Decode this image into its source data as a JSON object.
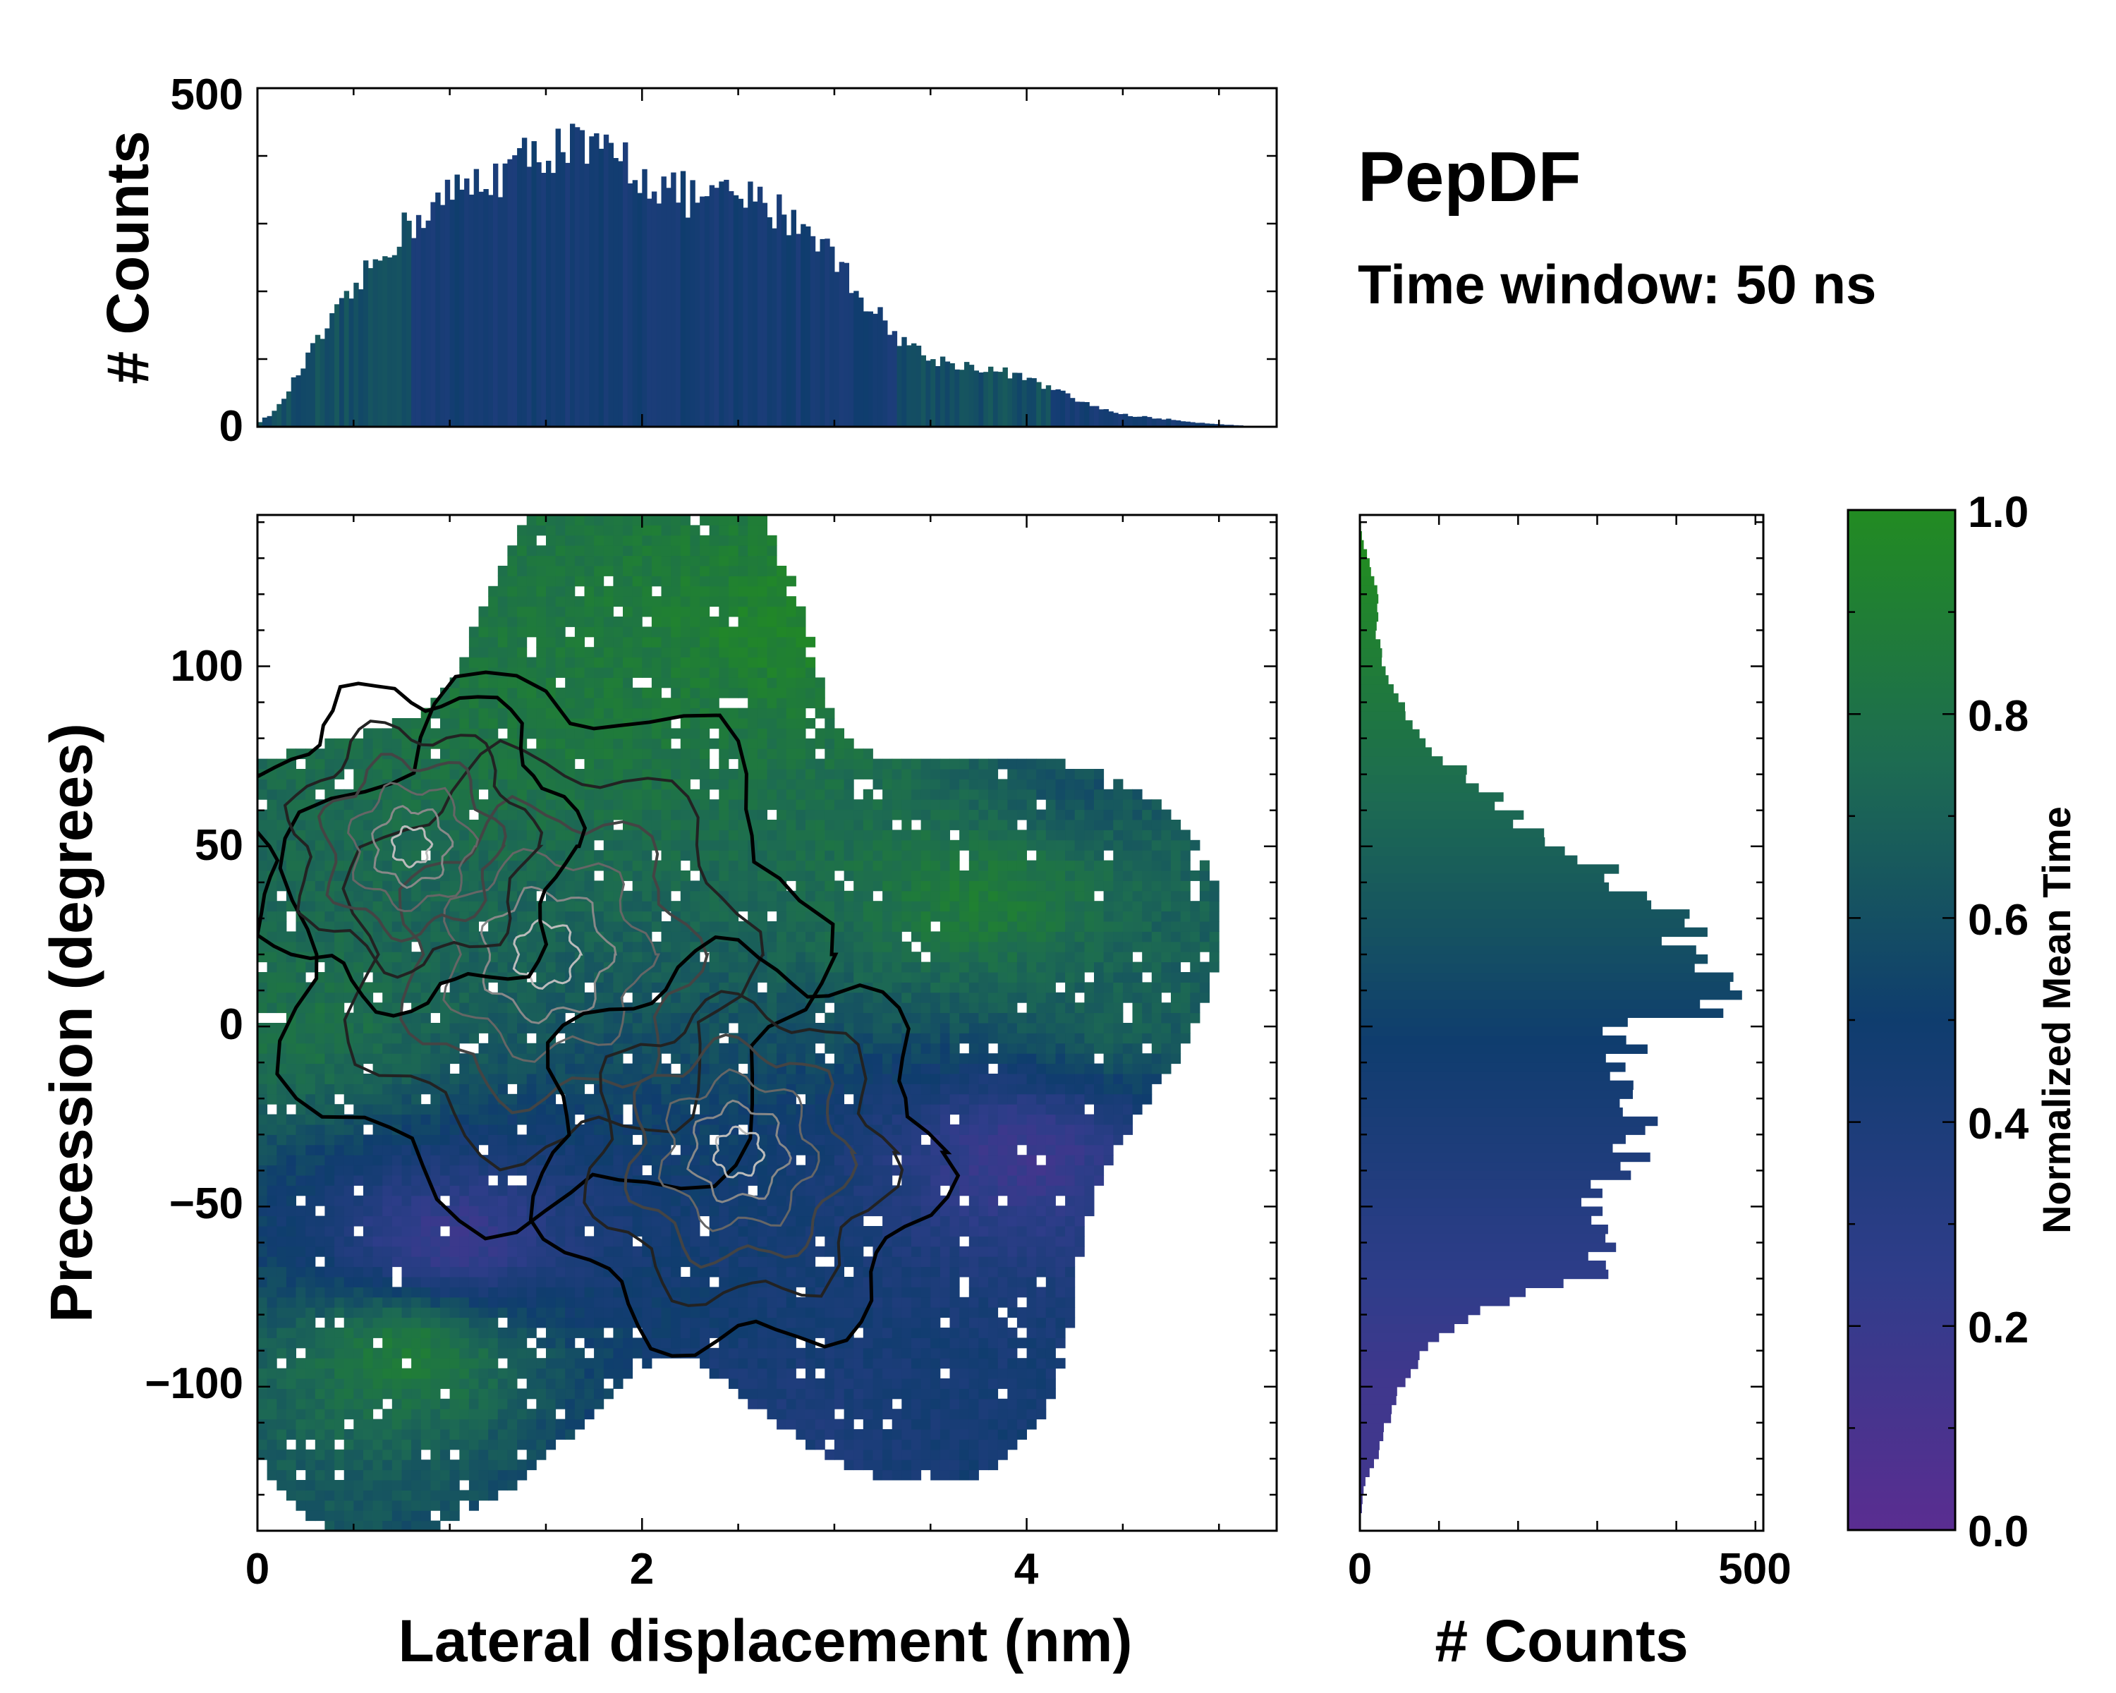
{
  "annotation": {
    "title": "PepDF",
    "subtitle": "Time window: 50 ns"
  },
  "colors": {
    "low": "#5a2d91",
    "mid": "#0f3d6e",
    "high": "#228b22"
  },
  "chart_data": [
    {
      "id": "top_histogram",
      "type": "bar",
      "title": "",
      "xlabel": "",
      "ylabel": "# Counts",
      "xlim": [
        0,
        5.3
      ],
      "ylim": [
        0,
        500
      ],
      "yticks": [
        "0",
        "500"
      ],
      "bin_width": 0.025,
      "profile": {
        "x": [
          0.0,
          0.1,
          0.3,
          0.5,
          0.7,
          0.9,
          1.1,
          1.3,
          1.5,
          1.6,
          1.7,
          1.9,
          2.1,
          2.3,
          2.5,
          2.7,
          2.9,
          3.1,
          3.3,
          3.5,
          3.7,
          3.9,
          4.1,
          4.3,
          4.5,
          4.7,
          4.9,
          5.1,
          5.2,
          5.3
        ],
        "counts": [
          5,
          25,
          120,
          200,
          275,
          325,
          355,
          380,
          410,
          420,
          405,
          395,
          355,
          335,
          340,
          320,
          290,
          210,
          140,
          100,
          90,
          80,
          60,
          35,
          18,
          12,
          6,
          2,
          1,
          0
        ]
      }
    },
    {
      "id": "joint_density",
      "type": "heatmap",
      "title": "",
      "xlabel": "Lateral displacement (nm)",
      "ylabel": "Precession (degrees)",
      "xlim": [
        0,
        5.3
      ],
      "ylim": [
        -140,
        142
      ],
      "xticks": [
        "0",
        "2",
        "4"
      ],
      "yticks": [
        "−100",
        "−50",
        "0",
        "50",
        "100"
      ],
      "density_peaks": [
        {
          "x": 1.5,
          "y": 20,
          "count_weight": 1.0
        },
        {
          "x": 2.5,
          "y": -35,
          "count_weight": 0.75
        },
        {
          "x": 0.8,
          "y": 50,
          "count_weight": 0.6
        }
      ],
      "regions": [
        {
          "x": 2.8,
          "y": 110,
          "normalized_mean_time": 0.95
        },
        {
          "x": 1.7,
          "y": 90,
          "normalized_mean_time": 0.85
        },
        {
          "x": 4.3,
          "y": 70,
          "normalized_mean_time": 0.6
        },
        {
          "x": 3.8,
          "y": 35,
          "normalized_mean_time": 0.9
        },
        {
          "x": 4.5,
          "y": 5,
          "normalized_mean_time": 0.7
        },
        {
          "x": 4.0,
          "y": -35,
          "normalized_mean_time": 0.15
        },
        {
          "x": 1.0,
          "y": -60,
          "normalized_mean_time": 0.15
        },
        {
          "x": 0.8,
          "y": -90,
          "normalized_mean_time": 0.9
        },
        {
          "x": 2.6,
          "y": -115,
          "normalized_mean_time": 0.38
        },
        {
          "x": 0.2,
          "y": 0,
          "normalized_mean_time": 0.8
        }
      ]
    },
    {
      "id": "right_histogram",
      "type": "bar",
      "title": "",
      "xlabel": "# Counts",
      "ylabel": "",
      "xlim": [
        0,
        510
      ],
      "ylim": [
        -140,
        142
      ],
      "xticks": [
        "0",
        "500"
      ],
      "bin_width": 2.5,
      "profile": {
        "y": [
          -140,
          -127,
          -120,
          -110,
          -100,
          -90,
          -80,
          -70,
          -65,
          -60,
          -55,
          -50,
          -40,
          -30,
          -20,
          -10,
          0,
          5,
          10,
          20,
          30,
          40,
          50,
          60,
          70,
          80,
          90,
          100,
          110,
          120,
          130,
          135,
          142
        ],
        "counts": [
          0,
          5,
          20,
          35,
          50,
          80,
          150,
          280,
          310,
          330,
          320,
          300,
          330,
          370,
          360,
          340,
          330,
          450,
          440,
          420,
          390,
          330,
          250,
          190,
          130,
          80,
          50,
          30,
          20,
          25,
          10,
          3,
          0
        ]
      }
    }
  ],
  "colorbar": {
    "label": "Normalized Mean Time",
    "ticks": [
      "0.0",
      "0.2",
      "0.4",
      "0.6",
      "0.8",
      "1.0"
    ]
  }
}
